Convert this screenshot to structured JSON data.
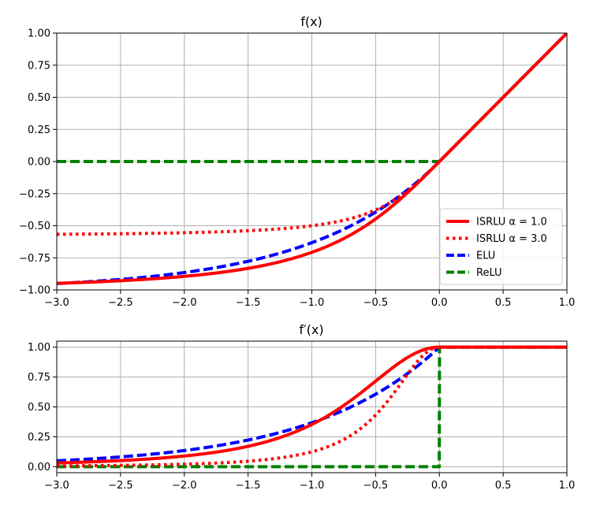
{
  "figure": {
    "top_title": "f(x)",
    "bottom_title": "f′(x)"
  },
  "colors": {
    "isrlu1": "#ff0000",
    "isrlu3": "#ff0000",
    "elu": "#0000ff",
    "relu": "#008000"
  },
  "chart_data": [
    {
      "type": "line",
      "title": "f(x)",
      "xlabel": "",
      "ylabel": "",
      "xlim": [
        -3.0,
        1.0
      ],
      "ylim": [
        -1.0,
        1.0
      ],
      "xticks": [
        "−3.0",
        "−2.5",
        "−2.0",
        "−1.5",
        "−1.0",
        "−0.5",
        "0.0",
        "0.5",
        "1.0"
      ],
      "yticks": [
        "1.00",
        "0.75",
        "0.50",
        "0.25",
        "0.00",
        "−0.25",
        "−0.50",
        "−0.75",
        "−1.00"
      ],
      "grid": true,
      "legend": "lower-right",
      "series": [
        {
          "name": "ISRLU α = 1.0",
          "style": "solid",
          "x": [
            -3.0,
            -2.5,
            -2.0,
            -1.5,
            -1.0,
            -0.75,
            -0.5,
            -0.25,
            0.0,
            0.5,
            1.0
          ],
          "y": [
            -0.949,
            -0.928,
            -0.894,
            -0.832,
            -0.707,
            -0.6,
            -0.447,
            -0.243,
            0.0,
            0.5,
            1.0
          ]
        },
        {
          "name": "ISRLU α = 3.0",
          "style": "dotted",
          "x": [
            -3.0,
            -2.5,
            -2.0,
            -1.5,
            -1.0,
            -0.75,
            -0.5,
            -0.25,
            0.0,
            0.5,
            1.0
          ],
          "y": [
            -0.569,
            -0.565,
            -0.555,
            -0.535,
            -0.5,
            -0.471,
            -0.408,
            -0.241,
            0.0,
            0.5,
            1.0
          ]
        },
        {
          "name": "ELU",
          "style": "dashed",
          "x": [
            -3.0,
            -2.5,
            -2.0,
            -1.5,
            -1.0,
            -0.75,
            -0.5,
            -0.25,
            0.0,
            0.5,
            1.0
          ],
          "y": [
            -0.95,
            -0.918,
            -0.865,
            -0.777,
            -0.632,
            -0.528,
            -0.393,
            -0.221,
            0.0,
            0.5,
            1.0
          ]
        },
        {
          "name": "ReLU",
          "style": "dashed",
          "x": [
            -3.0,
            0.0,
            0.5,
            1.0
          ],
          "y": [
            0.0,
            0.0,
            0.5,
            1.0
          ]
        }
      ]
    },
    {
      "type": "line",
      "title": "f′(x)",
      "xlabel": "",
      "ylabel": "",
      "xlim": [
        -3.0,
        1.0
      ],
      "ylim": [
        -0.05,
        1.05
      ],
      "xticks": [
        "−3.0",
        "−2.5",
        "−2.0",
        "−1.5",
        "−1.0",
        "−0.5",
        "0.0",
        "0.5",
        "1.0"
      ],
      "yticks": [
        "1.00",
        "0.75",
        "0.50",
        "0.25",
        "0.00"
      ],
      "grid": true,
      "series": [
        {
          "name": "ISRLU α = 1.0",
          "style": "solid",
          "x": [
            -3.0,
            -2.5,
            -2.0,
            -1.5,
            -1.0,
            -0.75,
            -0.5,
            -0.25,
            0.0,
            0.5,
            1.0
          ],
          "y": [
            0.032,
            0.05,
            0.089,
            0.175,
            0.354,
            0.512,
            0.716,
            0.91,
            1.0,
            1.0,
            1.0
          ]
        },
        {
          "name": "ISRLU α = 3.0",
          "style": "dotted",
          "x": [
            -3.0,
            -2.5,
            -2.0,
            -1.5,
            -1.0,
            -0.75,
            -0.5,
            -0.25,
            0.0,
            0.5,
            1.0
          ],
          "y": [
            0.006,
            0.011,
            0.021,
            0.051,
            0.125,
            0.21,
            0.385,
            0.7,
            1.0,
            1.0,
            1.0
          ]
        },
        {
          "name": "ELU",
          "style": "dashed",
          "x": [
            -3.0,
            -2.5,
            -2.0,
            -1.5,
            -1.0,
            -0.75,
            -0.5,
            -0.25,
            0.0,
            0.5,
            1.0
          ],
          "y": [
            0.05,
            0.082,
            0.135,
            0.223,
            0.368,
            0.472,
            0.607,
            0.779,
            1.0,
            1.0,
            1.0
          ]
        },
        {
          "name": "ReLU",
          "style": "dashed",
          "x": [
            -3.0,
            -0.001,
            0.001,
            1.0
          ],
          "y": [
            0.0,
            0.0,
            1.0,
            1.0
          ]
        }
      ]
    }
  ]
}
